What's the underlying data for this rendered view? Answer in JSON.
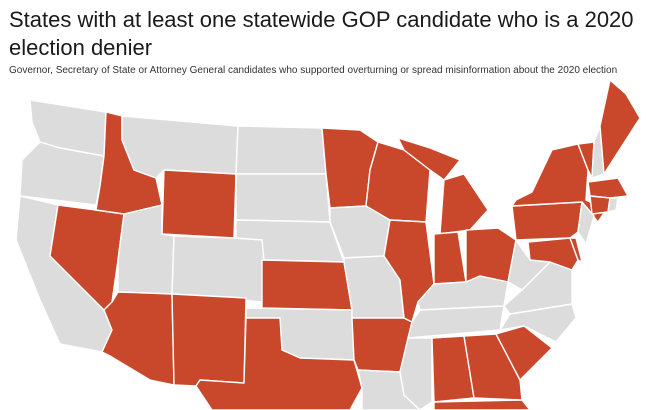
{
  "title": "States with at least one statewide GOP candidate who is a 2020 election denier",
  "subtitle": "Governor, Secretary of State or Attorney General candidates who supported overturning or spread misinformation about the 2020 election",
  "colors": {
    "highlight": "#c9472a",
    "other": "#dcdcdc"
  },
  "highlighted_states": [
    "ID",
    "WY",
    "NV",
    "AZ",
    "NM",
    "TX",
    "KS",
    "MN",
    "WI",
    "IL",
    "MI",
    "IN",
    "OH",
    "AR",
    "AL",
    "GA",
    "FL",
    "SC",
    "PA",
    "MD",
    "DE",
    "NY",
    "VT",
    "ME",
    "MA",
    "CT"
  ]
}
